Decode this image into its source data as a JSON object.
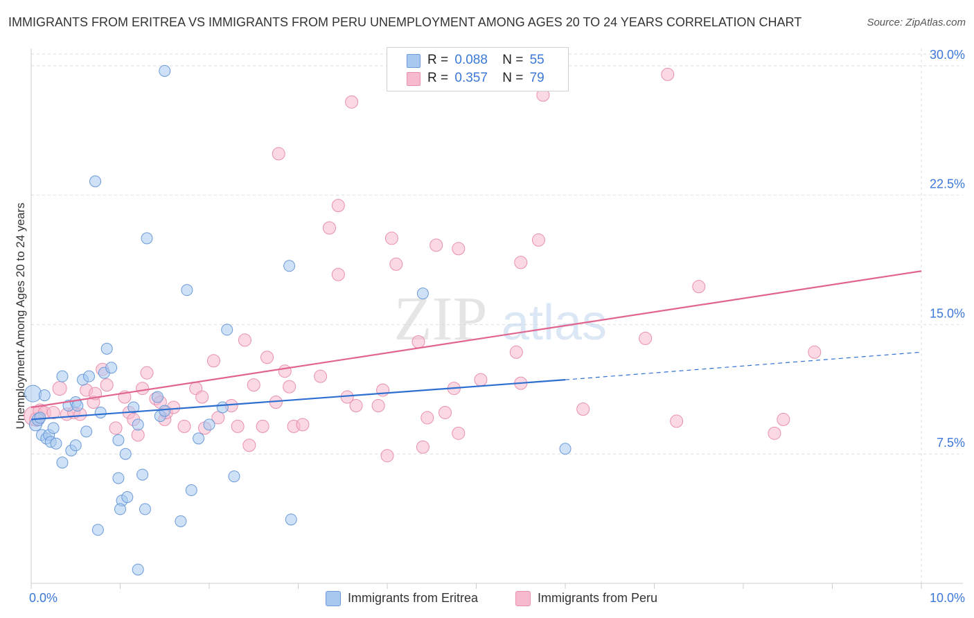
{
  "chart_data": {
    "type": "scatter",
    "title": "IMMIGRANTS FROM ERITREA VS IMMIGRANTS FROM PERU UNEMPLOYMENT AMONG AGES 20 TO 24 YEARS CORRELATION CHART",
    "source": "Source: ZipAtlas.com",
    "ylabel": "Unemployment Among Ages 20 to 24 years",
    "xlabel": "",
    "xlim": [
      0,
      10
    ],
    "ylim": [
      0,
      31
    ],
    "x_tick_labels": [
      "0.0%",
      "10.0%"
    ],
    "y_ticks": [
      7.5,
      15.0,
      22.5,
      30.0
    ],
    "y_tick_labels": [
      "7.5%",
      "15.0%",
      "22.5%",
      "30.0%"
    ],
    "watermark": "ZIPatlas",
    "colors": {
      "eritrea_fill": "#a8c8f0",
      "eritrea_stroke": "#6a9ad8",
      "eritrea_line": "#2d6fd0",
      "peru_fill": "#f7b9cd",
      "peru_stroke": "#e890ac",
      "peru_line": "#e0648e",
      "tick_label": "#3b78d8",
      "grid": "#dddddd"
    },
    "legend": {
      "eritrea": {
        "r_label": "R =",
        "r_value": "0.088",
        "n_label": "N =",
        "n_value": "55"
      },
      "peru": {
        "r_label": "R =",
        "r_value": "0.357",
        "n_label": "N =",
        "n_value": "79"
      }
    },
    "series": [
      {
        "name": "Immigrants from Eritrea",
        "trend": {
          "x0": 0.0,
          "y0": 9.5,
          "x1": 6.0,
          "y1": 11.8,
          "dash_x1": 10.0,
          "dash_y1": 13.4
        },
        "points": [
          [
            0.02,
            11.0,
            12
          ],
          [
            0.05,
            9.2,
            9
          ],
          [
            0.08,
            9.5,
            9
          ],
          [
            0.1,
            9.6,
            8
          ],
          [
            0.12,
            8.6,
            8
          ],
          [
            0.15,
            10.9,
            8
          ],
          [
            0.17,
            8.4,
            8
          ],
          [
            0.2,
            8.6,
            8
          ],
          [
            0.22,
            8.2,
            8
          ],
          [
            0.25,
            9.0,
            8
          ],
          [
            0.28,
            8.1,
            8
          ],
          [
            0.35,
            12.0,
            8
          ],
          [
            0.35,
            7.0,
            8
          ],
          [
            0.42,
            10.3,
            8
          ],
          [
            0.45,
            7.7,
            8
          ],
          [
            0.5,
            10.5,
            8
          ],
          [
            0.52,
            10.3,
            8
          ],
          [
            0.58,
            11.8,
            8
          ],
          [
            0.62,
            8.8,
            8
          ],
          [
            0.65,
            12.0,
            8
          ],
          [
            0.72,
            23.3,
            8
          ],
          [
            0.75,
            3.1,
            8
          ],
          [
            0.78,
            9.9,
            8
          ],
          [
            0.82,
            12.2,
            8
          ],
          [
            0.85,
            13.6,
            8
          ],
          [
            0.9,
            12.5,
            8
          ],
          [
            0.98,
            8.3,
            8
          ],
          [
            0.98,
            6.1,
            8
          ],
          [
            1.02,
            4.8,
            8
          ],
          [
            1.06,
            7.5,
            8
          ],
          [
            1.08,
            5.0,
            8
          ],
          [
            1.0,
            4.3,
            8
          ],
          [
            1.15,
            10.2,
            8
          ],
          [
            1.2,
            9.2,
            8
          ],
          [
            1.2,
            0.8,
            8
          ],
          [
            1.25,
            6.3,
            8
          ],
          [
            1.28,
            4.3,
            8
          ],
          [
            1.3,
            20.0,
            8
          ],
          [
            1.42,
            10.8,
            8
          ],
          [
            1.45,
            9.7,
            8
          ],
          [
            1.5,
            10.0,
            8
          ],
          [
            1.5,
            29.7,
            8
          ],
          [
            1.68,
            3.6,
            8
          ],
          [
            1.75,
            17.0,
            8
          ],
          [
            1.8,
            5.4,
            8
          ],
          [
            1.88,
            8.4,
            8
          ],
          [
            2.0,
            9.2,
            8
          ],
          [
            2.15,
            10.2,
            8
          ],
          [
            2.2,
            14.7,
            8
          ],
          [
            2.28,
            6.2,
            8
          ],
          [
            2.9,
            18.4,
            8
          ],
          [
            2.92,
            3.7,
            8
          ],
          [
            4.4,
            16.8,
            8
          ],
          [
            6.0,
            7.8,
            8
          ],
          [
            0.5,
            8.0,
            8
          ]
        ]
      },
      {
        "name": "Immigrants from Peru",
        "trend": {
          "x0": 0.0,
          "y0": 10.2,
          "x1": 10.0,
          "y1": 18.1
        },
        "points": [
          [
            0.03,
            9.7,
            14
          ],
          [
            0.06,
            9.5,
            10
          ],
          [
            0.1,
            10.0,
            10
          ],
          [
            0.15,
            9.9,
            9
          ],
          [
            0.25,
            9.9,
            9
          ],
          [
            0.32,
            11.3,
            10
          ],
          [
            0.4,
            9.8,
            9
          ],
          [
            0.48,
            9.9,
            9
          ],
          [
            0.55,
            9.8,
            9
          ],
          [
            0.62,
            11.2,
            9
          ],
          [
            0.7,
            10.5,
            9
          ],
          [
            0.72,
            11.0,
            9
          ],
          [
            0.8,
            12.4,
            9
          ],
          [
            0.85,
            11.5,
            9
          ],
          [
            0.95,
            9.0,
            9
          ],
          [
            1.05,
            10.8,
            9
          ],
          [
            1.1,
            9.9,
            9
          ],
          [
            1.15,
            9.5,
            9
          ],
          [
            1.2,
            8.6,
            9
          ],
          [
            1.25,
            11.3,
            9
          ],
          [
            1.3,
            12.2,
            9
          ],
          [
            1.4,
            10.7,
            9
          ],
          [
            1.45,
            10.5,
            9
          ],
          [
            1.5,
            9.5,
            9
          ],
          [
            1.52,
            9.9,
            9
          ],
          [
            1.6,
            10.2,
            9
          ],
          [
            1.72,
            9.1,
            9
          ],
          [
            1.85,
            11.3,
            9
          ],
          [
            1.92,
            10.8,
            9
          ],
          [
            1.95,
            9.0,
            9
          ],
          [
            2.05,
            12.9,
            9
          ],
          [
            2.1,
            9.6,
            9
          ],
          [
            2.25,
            10.3,
            9
          ],
          [
            2.32,
            9.1,
            9
          ],
          [
            2.4,
            14.1,
            9
          ],
          [
            2.45,
            8.0,
            9
          ],
          [
            2.5,
            11.5,
            9
          ],
          [
            2.6,
            9.1,
            9
          ],
          [
            2.65,
            13.1,
            9
          ],
          [
            2.75,
            10.5,
            9
          ],
          [
            2.78,
            24.9,
            9
          ],
          [
            2.85,
            12.3,
            9
          ],
          [
            2.9,
            11.4,
            9
          ],
          [
            2.95,
            9.1,
            9
          ],
          [
            3.05,
            9.2,
            9
          ],
          [
            3.25,
            12.0,
            9
          ],
          [
            3.35,
            20.6,
            9
          ],
          [
            3.45,
            17.9,
            9
          ],
          [
            3.45,
            21.9,
            9
          ],
          [
            3.55,
            10.8,
            9
          ],
          [
            3.6,
            27.9,
            9
          ],
          [
            3.65,
            10.3,
            9
          ],
          [
            3.9,
            10.3,
            9
          ],
          [
            3.95,
            11.2,
            9
          ],
          [
            4.0,
            7.4,
            9
          ],
          [
            4.05,
            20.0,
            9
          ],
          [
            4.1,
            18.5,
            9
          ],
          [
            4.35,
            14.0,
            9
          ],
          [
            4.4,
            7.9,
            9
          ],
          [
            4.45,
            9.6,
            9
          ],
          [
            4.55,
            19.6,
            9
          ],
          [
            4.65,
            9.9,
            9
          ],
          [
            4.75,
            11.3,
            9
          ],
          [
            4.8,
            8.7,
            9
          ],
          [
            4.8,
            19.4,
            9
          ],
          [
            5.05,
            11.8,
            9
          ],
          [
            5.45,
            13.4,
            9
          ],
          [
            5.5,
            18.6,
            9
          ],
          [
            5.5,
            11.6,
            9
          ],
          [
            5.7,
            19.9,
            9
          ],
          [
            5.75,
            28.3,
            9
          ],
          [
            6.2,
            10.1,
            9
          ],
          [
            6.9,
            14.2,
            9
          ],
          [
            7.15,
            29.5,
            9
          ],
          [
            7.25,
            9.4,
            9
          ],
          [
            7.5,
            17.2,
            9
          ],
          [
            8.35,
            8.7,
            9
          ],
          [
            8.45,
            9.5,
            9
          ],
          [
            8.8,
            13.4,
            9
          ]
        ]
      }
    ]
  }
}
